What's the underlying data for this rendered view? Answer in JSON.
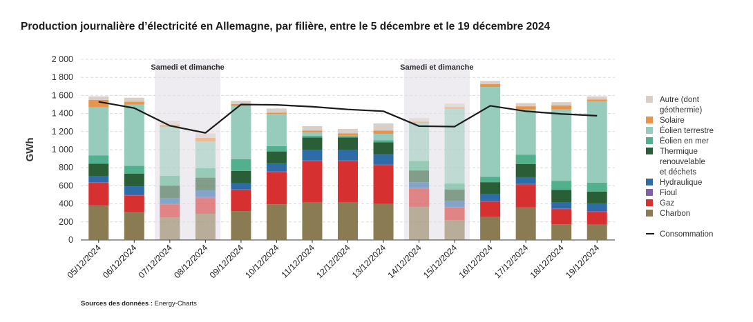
{
  "title": "Production journalière d’électricité en Allemagne, par filière, entre le 5 décembre et le 19 décembre 2024",
  "source_label": "Sources des données :",
  "source_value": "Energy-Charts",
  "chart_data": {
    "type": "bar",
    "stacked": true,
    "ylabel": "GWh",
    "ylim": [
      0,
      2000
    ],
    "yticks": [
      "0",
      "200",
      "400",
      "600",
      "800",
      "1 000",
      "1 200",
      "1 400",
      "1 600",
      "1 800",
      "2 000"
    ],
    "grid": true,
    "legend_position": "right",
    "categories": [
      "05/12/2024",
      "06/12/2024",
      "07/12/2024",
      "08/12/2024",
      "09/12/2024",
      "10/12/2024",
      "11/12/2024",
      "12/12/2024",
      "13/12/2024",
      "14/12/2024",
      "15/12/2024",
      "16/12/2024",
      "17/12/2024",
      "18/12/2024",
      "19/12/2024"
    ],
    "weekend_bands": [
      {
        "label": "Samedi et dimanche",
        "categories": [
          "07/12/2024",
          "08/12/2024"
        ]
      },
      {
        "label": "Samedi et dimanche",
        "categories": [
          "14/12/2024",
          "15/12/2024"
        ]
      }
    ],
    "series": [
      {
        "name": "Charbon",
        "color": "#8b7b53",
        "values": [
          380,
          310,
          250,
          290,
          320,
          395,
          420,
          420,
          400,
          365,
          220,
          255,
          360,
          175,
          170
        ]
      },
      {
        "name": "Gaz",
        "color": "#d63031",
        "values": [
          250,
          180,
          145,
          175,
          230,
          355,
          450,
          450,
          425,
          200,
          135,
          170,
          250,
          165,
          140
        ]
      },
      {
        "name": "Fioul",
        "color": "#7e5fa8",
        "values": [
          10,
          10,
          10,
          10,
          10,
          10,
          10,
          10,
          10,
          10,
          10,
          10,
          10,
          10,
          10
        ]
      },
      {
        "name": "Hydraulique",
        "color": "#2e6ca8",
        "values": [
          65,
          95,
          60,
          75,
          70,
          85,
          120,
          115,
          110,
          65,
          65,
          70,
          75,
          65,
          85
        ]
      },
      {
        "name": "Thermique renouvelable et déchets",
        "color": "#2a5e36",
        "values": [
          140,
          140,
          135,
          140,
          135,
          135,
          135,
          140,
          135,
          130,
          130,
          135,
          145,
          140,
          130
        ]
      },
      {
        "name": "Éolien en mer",
        "color": "#52b08c",
        "values": [
          90,
          85,
          110,
          105,
          130,
          60,
          20,
          15,
          25,
          105,
          65,
          60,
          105,
          100,
          100
        ]
      },
      {
        "name": "Éolien terrestre",
        "color": "#97ccbd",
        "values": [
          535,
          680,
          540,
          295,
          590,
          355,
          35,
          5,
          70,
          420,
          830,
          995,
          500,
          790,
          900
        ]
      },
      {
        "name": "Solaire",
        "color": "#e8944a",
        "values": [
          80,
          30,
          25,
          40,
          20,
          15,
          20,
          25,
          35,
          15,
          15,
          30,
          35,
          45,
          20
        ]
      },
      {
        "name": "Autre (dont géothermie)",
        "color": "#d8d0c8",
        "values": [
          40,
          45,
          45,
          50,
          35,
          45,
          50,
          50,
          80,
          40,
          40,
          35,
          35,
          35,
          35
        ]
      }
    ],
    "line": {
      "name": "Consommation",
      "color": "#1a1a1a",
      "values": [
        1530,
        1460,
        1265,
        1185,
        1500,
        1495,
        1475,
        1445,
        1425,
        1260,
        1255,
        1485,
        1425,
        1395,
        1375
      ]
    },
    "legend": [
      "Autre (dont géothermie)",
      "Solaire",
      "Éolien terrestre",
      "Éolien en mer",
      "Thermique renouvelable et déchets",
      "Hydraulique",
      "Fioul",
      "Gaz",
      "Charbon",
      "Consommation"
    ]
  }
}
